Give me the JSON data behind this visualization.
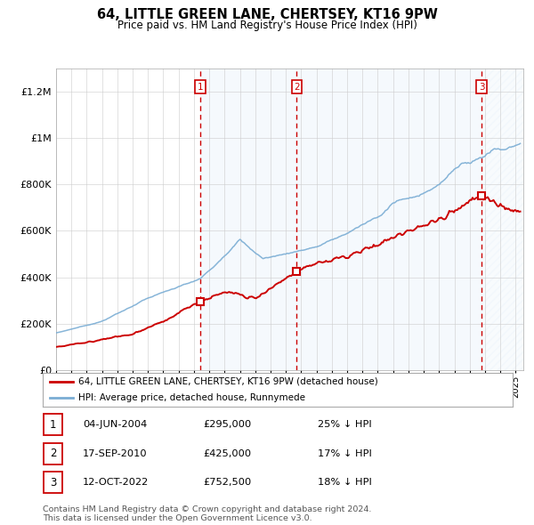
{
  "title": "64, LITTLE GREEN LANE, CHERTSEY, KT16 9PW",
  "subtitle": "Price paid vs. HM Land Registry's House Price Index (HPI)",
  "ylim": [
    0,
    1300000
  ],
  "yticks": [
    0,
    200000,
    400000,
    600000,
    800000,
    1000000,
    1200000
  ],
  "ytick_labels": [
    "£0",
    "£200K",
    "£400K",
    "£600K",
    "£800K",
    "£1M",
    "£1.2M"
  ],
  "sale_dates_num": [
    2004.43,
    2010.71,
    2022.78
  ],
  "sale_prices": [
    295000,
    425000,
    752500
  ],
  "sale_labels": [
    "1",
    "2",
    "3"
  ],
  "sale_date_strs": [
    "04-JUN-2004",
    "17-SEP-2010",
    "12-OCT-2022"
  ],
  "sale_price_strs": [
    "£295,000",
    "£425,000",
    "£752,500"
  ],
  "sale_hpi_strs": [
    "25% ↓ HPI",
    "17% ↓ HPI",
    "18% ↓ HPI"
  ],
  "hpi_color": "#7aadd4",
  "price_color": "#cc0000",
  "shade_color": "#ddeeff",
  "vline_color": "#cc0000",
  "legend_label_price": "64, LITTLE GREEN LANE, CHERTSEY, KT16 9PW (detached house)",
  "legend_label_hpi": "HPI: Average price, detached house, Runnymede",
  "footer": "Contains HM Land Registry data © Crown copyright and database right 2024.\nThis data is licensed under the Open Government Licence v3.0.",
  "xmin": 1995,
  "xmax": 2025.5,
  "target_hpi_2004": 393333,
  "target_hpi_2010": 512048,
  "target_hpi_2022": 917683
}
